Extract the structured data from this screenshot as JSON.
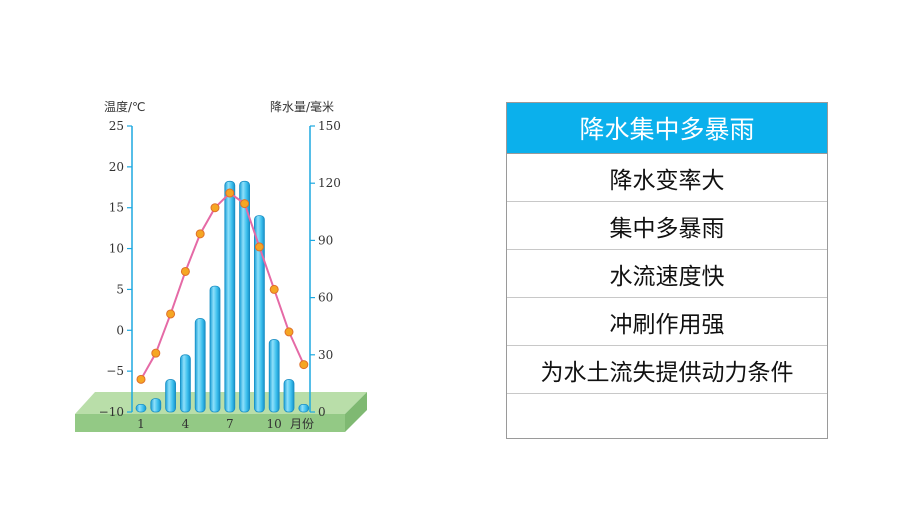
{
  "chart_data": {
    "type": "bar+line",
    "ylabel_left": "温度/℃",
    "ylabel_right": "降水量/毫米",
    "xlabel": "月份",
    "x_ticks": [
      "1",
      "4",
      "7",
      "10"
    ],
    "y_left_ticks": [
      "25",
      "20",
      "15",
      "10",
      "5",
      "0",
      "−5",
      "−10"
    ],
    "y_right_ticks": [
      "150",
      "120",
      "90",
      "60",
      "30",
      "0"
    ],
    "y_left_range": [
      -10,
      25
    ],
    "y_right_range": [
      0,
      150
    ],
    "months": [
      1,
      2,
      3,
      4,
      5,
      6,
      7,
      8,
      9,
      10,
      11,
      12
    ],
    "precipitation_mm": [
      4,
      7,
      17,
      30,
      49,
      66,
      121,
      121,
      103,
      38,
      17,
      4
    ],
    "temperature_c": [
      -6,
      -2.8,
      2,
      7.2,
      11.8,
      15,
      16.8,
      15.5,
      10.2,
      5,
      -0.2,
      -4.2
    ],
    "colors": {
      "bar": "#3fc3ee",
      "bar_outline": "#1a8fc4",
      "line": "#e56aa6",
      "marker": "#f5a623",
      "axis": "#1ea8e0",
      "base": "#a8d39a"
    }
  },
  "panel": {
    "header": "降水集中多暴雨",
    "rows": [
      "降水变率大",
      "集中多暴雨",
      "水流速度快",
      "冲刷作用强",
      "为水土流失提供动力条件",
      ""
    ]
  }
}
